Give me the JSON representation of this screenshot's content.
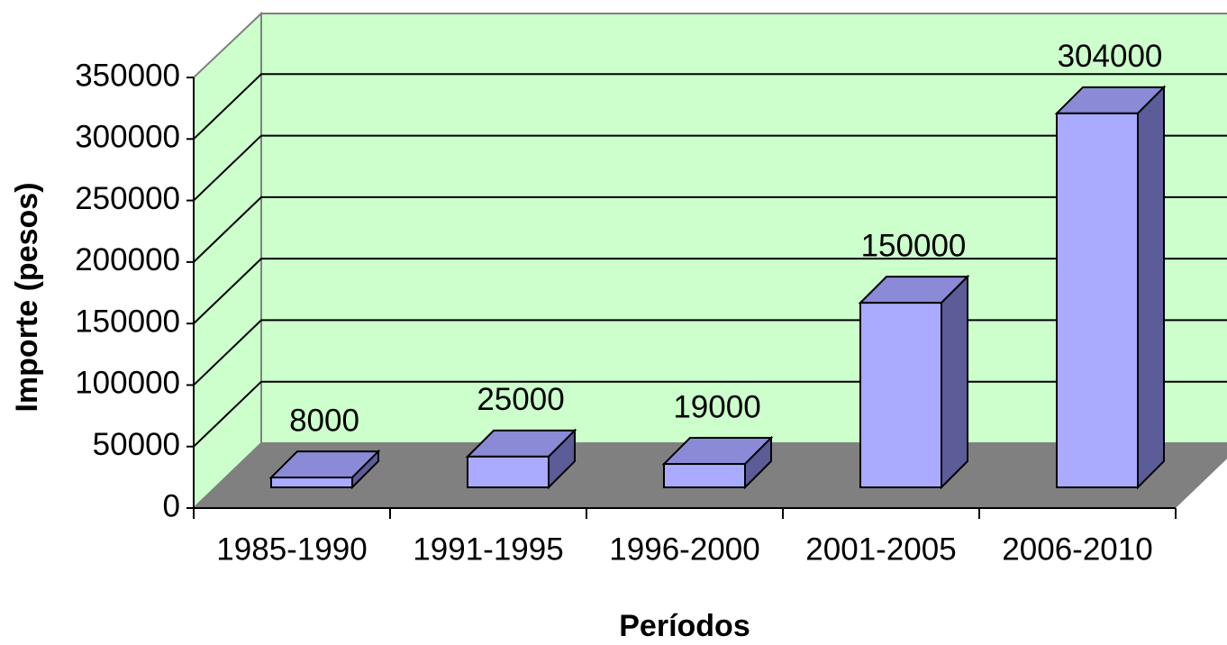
{
  "chart_data": {
    "type": "bar3d",
    "x_label": "Períodos",
    "y_label": "Importe (pesos)",
    "categories": [
      "1985-1990",
      "1991-1995",
      "1996-2000",
      "2001-2005",
      "2006-2010"
    ],
    "values": [
      8000,
      25000,
      19000,
      150000,
      304000
    ],
    "color": "#aaaaff",
    "ylim": [
      0,
      350000
    ],
    "yticks": [
      0,
      50000,
      100000,
      150000,
      200000,
      250000,
      300000,
      350000
    ],
    "grid": true
  }
}
